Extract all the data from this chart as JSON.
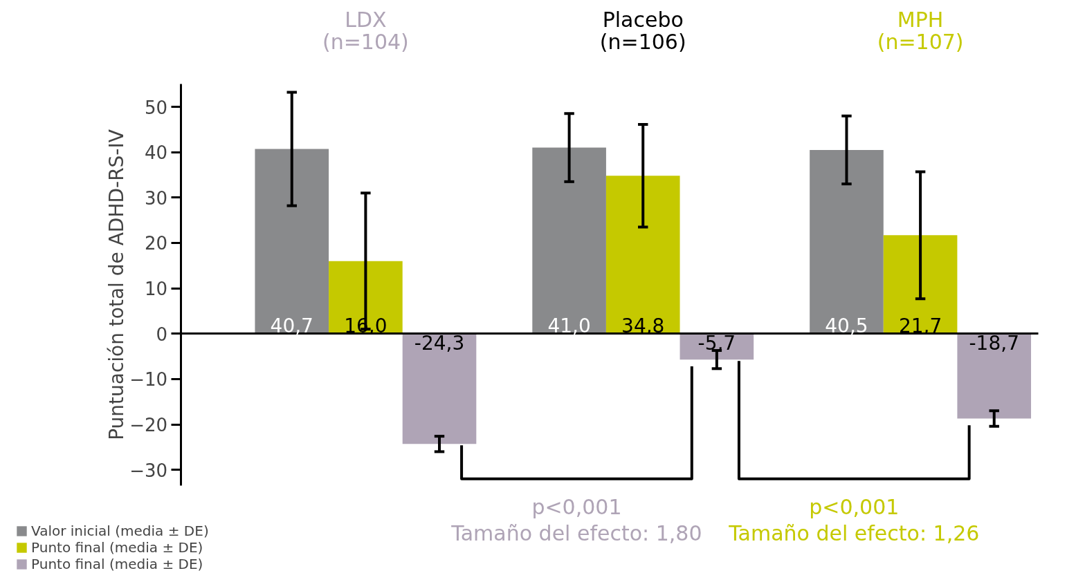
{
  "chart_data": {
    "type": "bar",
    "categories": [
      "LDX\n(n=104)",
      "Placebo\n(n=106)",
      "MPH\n(n=107)"
    ],
    "ylabel": "Puntuación total de ADHD-RS-IV",
    "series": [
      {
        "name": "Valor inicial (media ± DE)",
        "color": "#898a8c",
        "values": [
          40.7,
          41.0,
          40.5
        ],
        "errors": [
          12.5,
          7.5,
          7.5
        ],
        "value_labels": [
          "40,7",
          "41,0",
          "40,5"
        ]
      },
      {
        "name": "Punto final (media ± DE)",
        "color": "#c5c900",
        "values": [
          16.0,
          34.8,
          21.7
        ],
        "errors": [
          15,
          11.3,
          14
        ],
        "value_labels": [
          "16,0",
          "34,8",
          "21,7"
        ]
      },
      {
        "name": "Punto final (media ± DE)",
        "color": "#afa4b6",
        "values": [
          -24.3,
          -5.7,
          -18.7
        ],
        "errors": [
          1.7,
          2,
          1.7
        ],
        "value_labels": [
          "-24,3",
          "-5,7",
          "-18,7"
        ]
      }
    ],
    "ylim": [
      -33.5,
      55
    ],
    "yticks": [
      -30,
      -20,
      -10,
      0,
      10,
      20,
      30,
      40,
      50
    ],
    "legend": "bottom left",
    "annotations": [
      "p<0,001\nTamaño del efecto: 1,80",
      "p<0,001\nTamaño del efecto: 1,26"
    ]
  }
}
